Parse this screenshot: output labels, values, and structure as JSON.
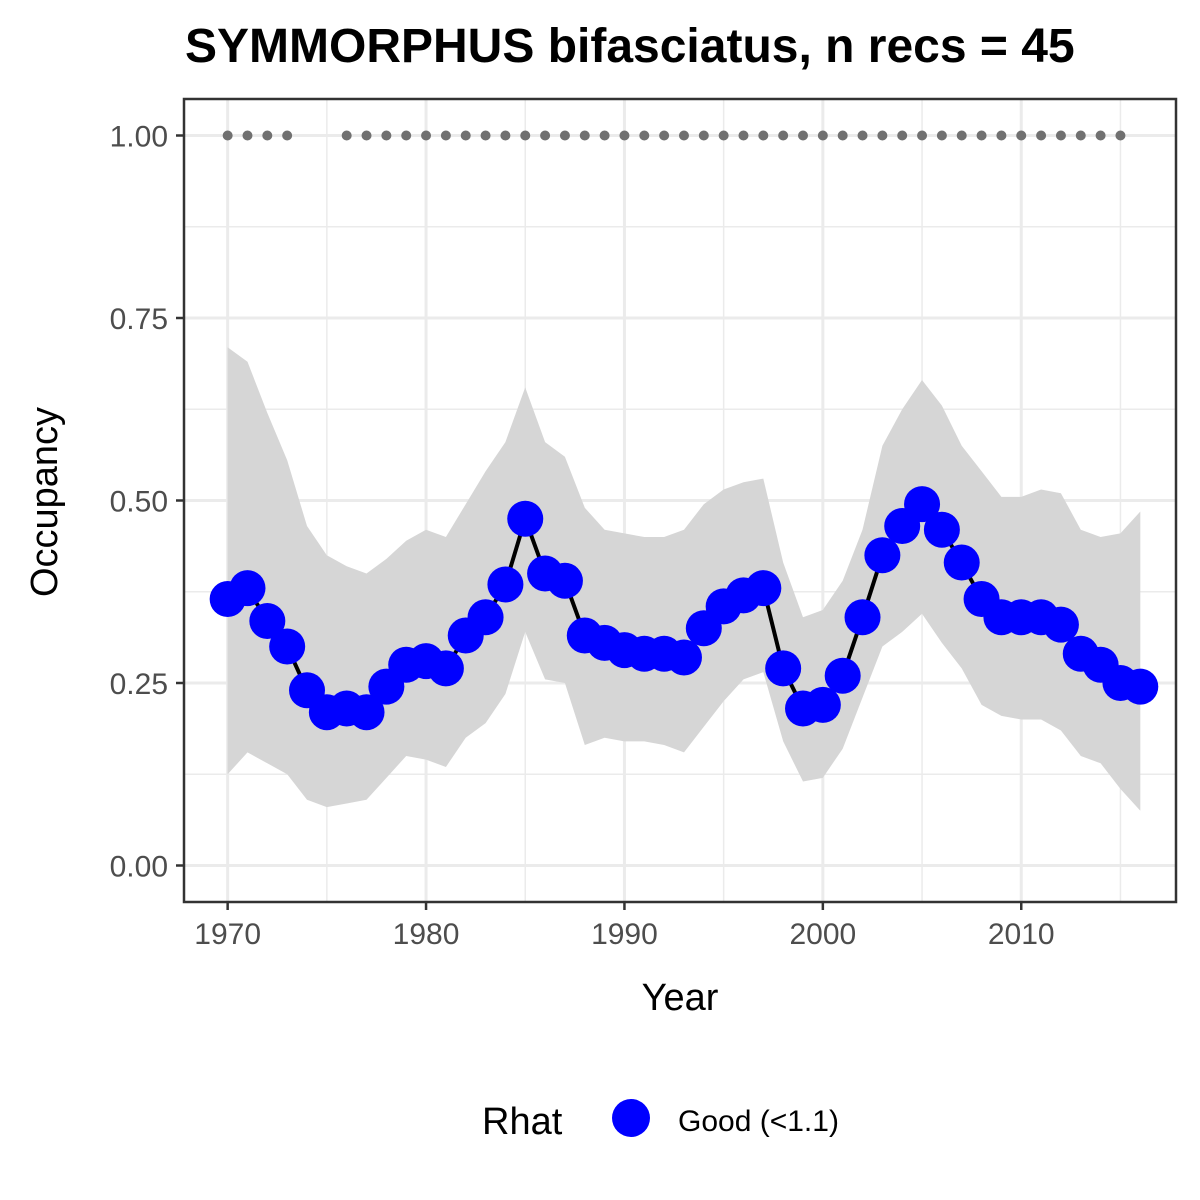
{
  "chart_data": {
    "type": "line",
    "title": "SYMMORPHUS bifasciatus, n recs = 45",
    "xlabel": "Year",
    "ylabel": "Occupancy",
    "xlim": [
      1967.8,
      2017.8
    ],
    "ylim": [
      -0.05,
      1.05
    ],
    "x_ticks": [
      1970,
      1980,
      1990,
      2000,
      2010
    ],
    "x_tick_labels": [
      "1970",
      "1980",
      "1990",
      "2000",
      "2010"
    ],
    "y_ticks": [
      0,
      0.25,
      0.5,
      0.75,
      1.0
    ],
    "y_tick_labels": [
      "0.00",
      "0.25",
      "0.50",
      "0.75",
      "1.00"
    ],
    "grid": true,
    "colors": {
      "points": "#0000ff",
      "line": "#000000",
      "ribbon": "#d6d6d6",
      "record_dots": "#707070",
      "grid": "#ebebeb",
      "axis": "#333333"
    },
    "series": [
      {
        "x": [
          1970,
          1971,
          1972,
          1973,
          1974,
          1975,
          1976,
          1977,
          1978,
          1979,
          1980,
          1981,
          1982,
          1983,
          1984,
          1985,
          1986,
          1987,
          1988,
          1989,
          1990,
          1991,
          1992,
          1993,
          1994,
          1995,
          1996,
          1997,
          1998,
          1999,
          2000,
          2001,
          2002,
          2003,
          2004,
          2005,
          2006,
          2007,
          2008,
          2009,
          2010,
          2011,
          2012,
          2013,
          2014,
          2015,
          2016
        ],
        "y": [
          0.365,
          0.38,
          0.335,
          0.3,
          0.24,
          0.21,
          0.215,
          0.21,
          0.245,
          0.275,
          0.28,
          0.27,
          0.315,
          0.34,
          0.385,
          0.475,
          0.4,
          0.39,
          0.315,
          0.305,
          0.295,
          0.29,
          0.29,
          0.285,
          0.325,
          0.355,
          0.37,
          0.38,
          0.27,
          0.215,
          0.22,
          0.26,
          0.34,
          0.425,
          0.465,
          0.495,
          0.46,
          0.415,
          0.365,
          0.34,
          0.34,
          0.34,
          0.33,
          0.29,
          0.275,
          0.25,
          0.245
        ],
        "lower": [
          0.125,
          0.155,
          0.14,
          0.125,
          0.09,
          0.08,
          0.085,
          0.09,
          0.12,
          0.15,
          0.145,
          0.135,
          0.175,
          0.195,
          0.235,
          0.32,
          0.255,
          0.25,
          0.165,
          0.175,
          0.17,
          0.17,
          0.165,
          0.155,
          0.19,
          0.225,
          0.255,
          0.265,
          0.17,
          0.115,
          0.12,
          0.16,
          0.23,
          0.3,
          0.32,
          0.345,
          0.305,
          0.27,
          0.22,
          0.205,
          0.2,
          0.2,
          0.185,
          0.15,
          0.14,
          0.105,
          0.075
        ],
        "upper": [
          0.71,
          0.69,
          0.62,
          0.555,
          0.465,
          0.425,
          0.41,
          0.4,
          0.42,
          0.445,
          0.46,
          0.45,
          0.495,
          0.54,
          0.58,
          0.655,
          0.58,
          0.56,
          0.49,
          0.46,
          0.455,
          0.45,
          0.45,
          0.46,
          0.495,
          0.515,
          0.525,
          0.53,
          0.415,
          0.34,
          0.35,
          0.39,
          0.46,
          0.575,
          0.625,
          0.665,
          0.63,
          0.575,
          0.54,
          0.505,
          0.505,
          0.515,
          0.51,
          0.46,
          0.45,
          0.455,
          0.485
        ]
      }
    ],
    "records": {
      "y": 1.0,
      "x": [
        1970,
        1971,
        1972,
        1973,
        1976,
        1977,
        1978,
        1979,
        1980,
        1981,
        1982,
        1983,
        1984,
        1985,
        1986,
        1987,
        1988,
        1989,
        1990,
        1991,
        1992,
        1993,
        1994,
        1995,
        1996,
        1997,
        1998,
        1999,
        2000,
        2001,
        2002,
        2003,
        2004,
        2005,
        2006,
        2007,
        2008,
        2009,
        2010,
        2011,
        2012,
        2013,
        2014,
        2015
      ]
    },
    "legend": {
      "title": "Rhat",
      "items": [
        {
          "label": "Good (<1.1)",
          "color": "#0000ff"
        }
      ],
      "position": "bottom"
    }
  }
}
